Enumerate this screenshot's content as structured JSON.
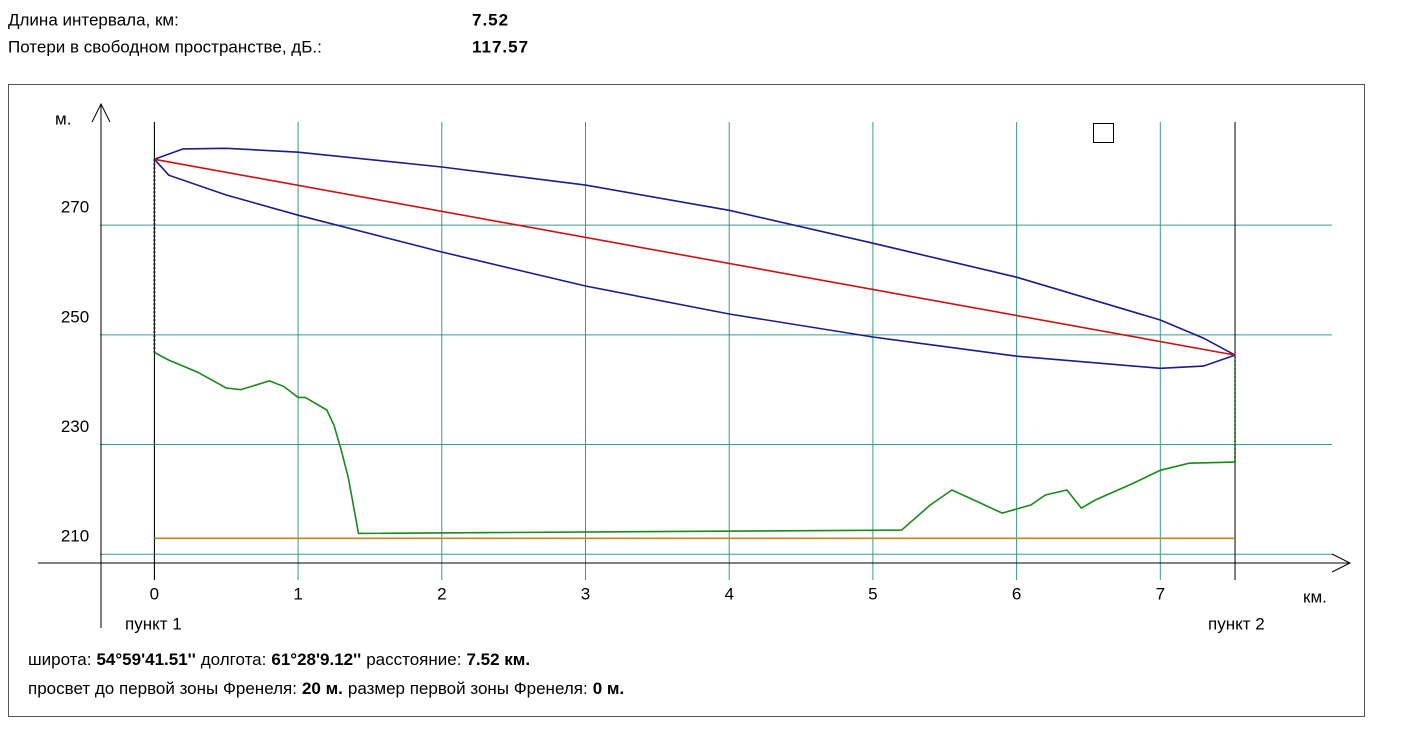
{
  "header": {
    "rows": [
      {
        "label": "Длина интервала, км:",
        "value": "7.52"
      },
      {
        "label": "Потери в свободном пространстве, дБ.:",
        "value": "117.57"
      }
    ]
  },
  "chart_data": {
    "type": "line",
    "y_label": "м.",
    "x_label": "км.",
    "point_labels": [
      "пункт 1",
      "пункт 2"
    ],
    "xlim": [
      -0.81,
      8.32
    ],
    "ylim": [
      208.4,
      291.9
    ],
    "xticks": [
      0,
      1,
      2,
      3,
      4,
      5,
      6,
      7
    ],
    "yticks": [
      210,
      230,
      250,
      270
    ],
    "grid": true,
    "grid_color": "#3a9a8a",
    "series": [
      {
        "color": "#1c1c8e",
        "x": [
          0,
          0.2,
          0.5,
          1,
          2,
          3,
          4,
          5,
          6,
          7,
          7.3,
          7.52
        ],
        "values": [
          282,
          283.9,
          284,
          283.3,
          280.6,
          277.3,
          272.7,
          266.7,
          260.5,
          252.7,
          249.4,
          246.3
        ]
      },
      {
        "color": "#1c1c8e",
        "x": [
          0,
          0.1,
          0.5,
          1,
          2,
          3,
          4,
          5,
          6,
          7,
          7.3,
          7.52
        ],
        "values": [
          282,
          279.1,
          275.5,
          271.8,
          265.1,
          258.9,
          253.8,
          249.6,
          246.1,
          243.9,
          244.3,
          246.3
        ]
      },
      {
        "color": "#d01010",
        "x": [
          0,
          7.52
        ],
        "values": [
          282,
          246.3
        ]
      },
      {
        "color": "#1a8a1a",
        "x": [
          0,
          0.1,
          0.3,
          0.5,
          0.6,
          0.8,
          0.9,
          1.0,
          1.05,
          1.2,
          1.25,
          1.3,
          1.35,
          1.42,
          5.2,
          5.4,
          5.55,
          5.7,
          5.9,
          6.1,
          6.2,
          6.35,
          6.45,
          6.55,
          6.8,
          7.0,
          7.2,
          7.52
        ],
        "values": [
          246.8,
          245.4,
          243.2,
          240.3,
          240,
          241.6,
          240.6,
          238.6,
          238.6,
          236.3,
          233.5,
          229,
          223.9,
          213.8,
          214.4,
          219,
          221.7,
          219.9,
          217.5,
          219,
          220.8,
          221.7,
          218.4,
          219.9,
          222.8,
          225.3,
          226.6,
          226.8
        ]
      },
      {
        "color": "#c08a1a",
        "x": [
          0,
          7.52
        ],
        "values": [
          212.9,
          212.9
        ]
      },
      {
        "color": "#222222",
        "style": "dotted",
        "x": [
          0,
          0
        ],
        "values": [
          282,
          246.8
        ]
      },
      {
        "color": "#1a8a1a",
        "style": "dotted",
        "x": [
          7.52,
          7.52
        ],
        "values": [
          226.8,
          246.3
        ]
      }
    ]
  },
  "footer": {
    "lines": [
      [
        {
          "text": "широта:"
        },
        {
          "text": "54°59'41.51''",
          "bold": true
        },
        {
          "text": "долгота:"
        },
        {
          "text": "61°28'9.12''",
          "bold": true
        },
        {
          "text": "расстояние:"
        },
        {
          "text": "7.52 км.",
          "bold": true
        }
      ],
      [
        {
          "text": "просвет до первой зоны Френеля:"
        },
        {
          "text": "20 м.",
          "bold": true
        },
        {
          "text": "размер первой зоны Френеля:"
        },
        {
          "text": "0 м.",
          "bold": true
        }
      ]
    ]
  }
}
